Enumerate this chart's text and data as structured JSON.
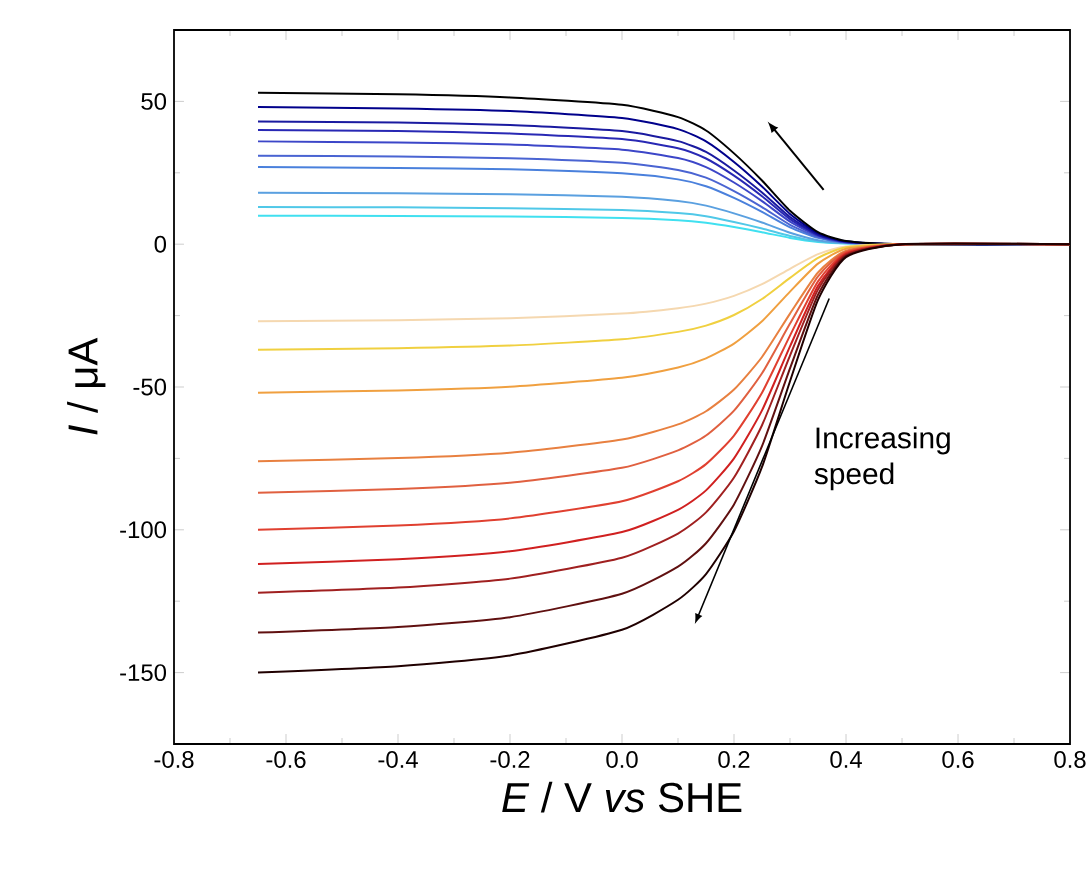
{
  "chart_data": {
    "type": "line",
    "xlabel": "*E* / V *vs* SHE",
    "ylabel": "*I* / μA",
    "xlim": [
      -0.8,
      0.8
    ],
    "ylim": [
      -175,
      75
    ],
    "xticks": [
      -0.8,
      -0.6,
      -0.4,
      -0.2,
      {
        "value": 0,
        "label": "0.0"
      },
      0.2,
      0.4,
      0.6,
      0.8
    ],
    "yticks": [
      -150,
      -100,
      -50,
      0,
      50
    ],
    "annotations": [
      "Increasing speed"
    ],
    "x": [
      -0.65,
      -0.4,
      -0.2,
      0,
      0.1,
      0.15,
      0.2,
      0.25,
      0.3,
      0.35,
      0.4,
      0.5,
      0.8
    ],
    "series": [
      {
        "color": "#40e0f0",
        "values": [
          10,
          9.9,
          9.7,
          9.2,
          8.4,
          7.5,
          6,
          4.2,
          2.2,
          0.8,
          0.2,
          0,
          0
        ]
      },
      {
        "color": "#50c8e8",
        "values": [
          13,
          12.9,
          12.6,
          12,
          10.9,
          9.8,
          7.8,
          5.5,
          2.9,
          1,
          0.3,
          0,
          0
        ]
      },
      {
        "color": "#5aa0e0",
        "values": [
          18,
          17.8,
          17.5,
          16.6,
          15.1,
          13.5,
          10.8,
          7.6,
          4,
          1.4,
          0.4,
          0,
          0
        ]
      },
      {
        "color": "#4a80dc",
        "values": [
          27,
          26.7,
          26.2,
          24.8,
          22.7,
          20.3,
          16.2,
          11.3,
          5.9,
          2.2,
          0.5,
          0,
          0
        ]
      },
      {
        "color": "#4a64d2",
        "values": [
          31,
          30.7,
          30.1,
          28.5,
          26,
          23.3,
          18.6,
          13,
          6.8,
          2.5,
          0.6,
          0,
          0
        ]
      },
      {
        "color": "#3c46c8",
        "values": [
          36,
          35.6,
          34.9,
          33.1,
          30.2,
          27,
          21.6,
          15.1,
          7.9,
          2.9,
          0.7,
          0,
          0
        ]
      },
      {
        "color": "#2828b4",
        "values": [
          40,
          39.6,
          38.8,
          36.8,
          33.6,
          30,
          24,
          16.8,
          8.8,
          3.2,
          0.8,
          0,
          0
        ]
      },
      {
        "color": "#1a1aa0",
        "values": [
          43,
          42.6,
          41.7,
          39.6,
          36.1,
          32.3,
          25.8,
          18.1,
          9.5,
          3.4,
          0.9,
          0,
          0
        ]
      },
      {
        "color": "#00008b",
        "values": [
          48,
          47.5,
          46.6,
          44.2,
          40.3,
          36,
          28.8,
          20.2,
          10.6,
          3.8,
          1,
          0,
          0
        ]
      },
      {
        "color": "#000000",
        "values": [
          53,
          52.5,
          51.4,
          48.8,
          44.5,
          39.8,
          31.8,
          22.3,
          11.7,
          4.2,
          1.1,
          0,
          0
        ]
      },
      {
        "color": "#f5d8b0",
        "values": [
          -27,
          -26.6,
          -25.9,
          -24.3,
          -22.4,
          -20.8,
          -18.1,
          -14,
          -8.6,
          -3.5,
          -0.8,
          0,
          0
        ]
      },
      {
        "color": "#f0d040",
        "values": [
          -37,
          -36.4,
          -35.5,
          -33.3,
          -30.7,
          -28.5,
          -24.8,
          -19.2,
          -11.8,
          -4.8,
          -1.1,
          0,
          0
        ]
      },
      {
        "color": "#f0a040",
        "values": [
          -52,
          -51.2,
          -49.9,
          -46.8,
          -43.2,
          -40,
          -34.8,
          -27,
          -16.6,
          -6.8,
          -1.6,
          0,
          0
        ]
      },
      {
        "color": "#e88040",
        "values": [
          -76,
          -74.9,
          -73,
          -68.4,
          -63.1,
          -58.5,
          -50.9,
          -39.5,
          -24.3,
          -9.9,
          -2.3,
          0,
          0
        ]
      },
      {
        "color": "#e06040",
        "values": [
          -87,
          -85.7,
          -83.5,
          -78.3,
          -72.2,
          -67,
          -58.3,
          -45.2,
          -27.8,
          -11.3,
          -2.6,
          0,
          0
        ]
      },
      {
        "color": "#e04030",
        "values": [
          -100,
          -98.5,
          -96,
          -90,
          -83,
          -77,
          -67,
          -52,
          -32,
          -13,
          -3,
          0,
          0
        ]
      },
      {
        "color": "#d02020",
        "values": [
          -112,
          -110.3,
          -107.5,
          -100.8,
          -93,
          -86.2,
          -75,
          -58.2,
          -35.8,
          -14.6,
          -3.4,
          0,
          0
        ]
      },
      {
        "color": "#a02020",
        "values": [
          -122,
          -120.2,
          -117.1,
          -109.8,
          -101.3,
          -93.9,
          -81.7,
          -63.4,
          -39,
          -15.9,
          -3.7,
          0,
          0
        ]
      },
      {
        "color": "#601010",
        "values": [
          -136,
          -134,
          -130.6,
          -122.4,
          -112.9,
          -104.7,
          -91.1,
          -70.7,
          -43.5,
          -17.7,
          -4.1,
          0,
          0
        ]
      },
      {
        "color": "#200000",
        "values": [
          -150,
          -147.8,
          -144,
          -135,
          -124.5,
          -115.5,
          -100.5,
          -78,
          -48,
          -19.5,
          -4.5,
          0,
          0
        ]
      }
    ]
  }
}
